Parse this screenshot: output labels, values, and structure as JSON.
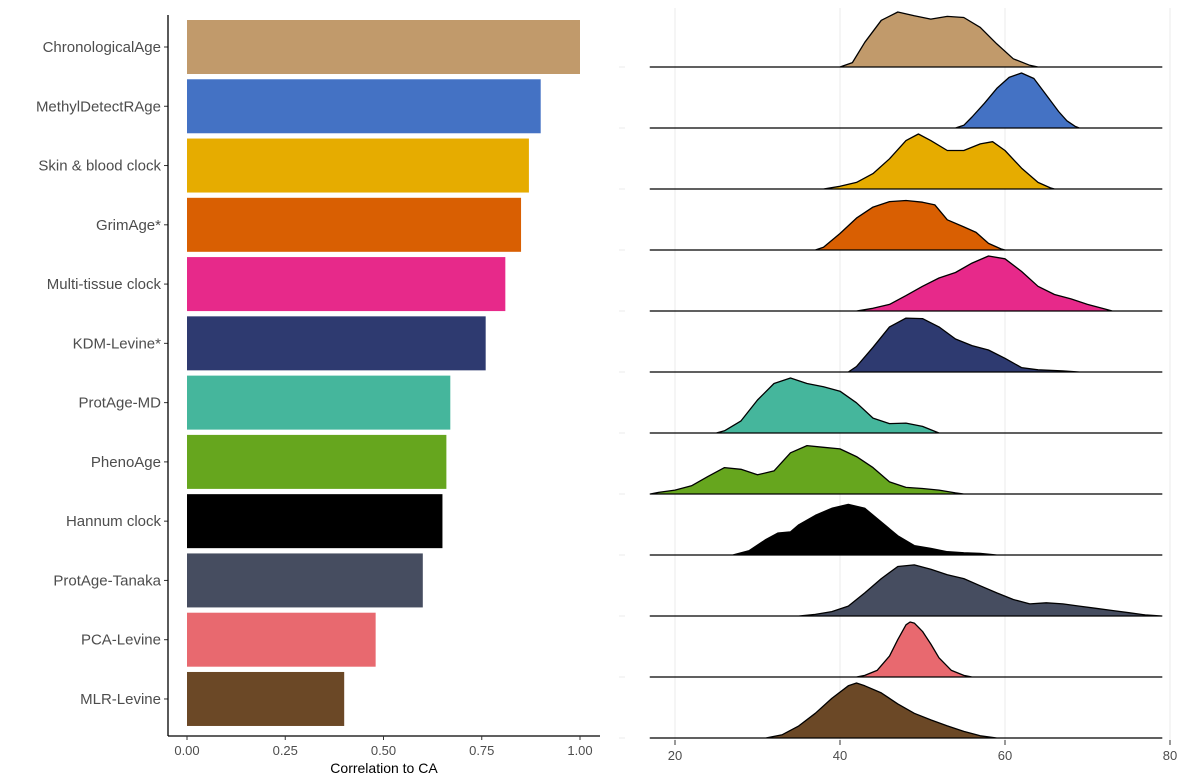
{
  "chart_data": [
    {
      "type": "bar",
      "orientation": "horizontal",
      "categories": [
        "ChronologicalAge",
        "MethylDetectRAge",
        "Skin & blood clock",
        "GrimAge*",
        "Multi-tissue clock",
        "KDM-Levine*",
        "ProtAge-MD",
        "PhenoAge",
        "Hannum clock",
        "ProtAge-Tanaka",
        "PCA-Levine",
        "MLR-Levine"
      ],
      "values": [
        1.0,
        0.9,
        0.87,
        0.85,
        0.81,
        0.76,
        0.67,
        0.66,
        0.65,
        0.6,
        0.48,
        0.4
      ],
      "colors": [
        "#C19A6B",
        "#4472C4",
        "#E6AC00",
        "#D95F02",
        "#E7298A",
        "#2E3A70",
        "#45B69C",
        "#66A61E",
        "#000000",
        "#464D60",
        "#E8696F",
        "#6B4826"
      ],
      "xlabel": "Correlation to CA",
      "xlim": [
        0,
        1.0
      ],
      "xticks": [
        "0.00",
        "0.25",
        "0.50",
        "0.75",
        "1.00"
      ],
      "grid": false
    },
    {
      "type": "area",
      "subtype": "ridgeline",
      "series_order": [
        "ChronologicalAge",
        "MethylDetectRAge",
        "Skin & blood clock",
        "GrimAge*",
        "Multi-tissue clock",
        "KDM-Levine*",
        "ProtAge-MD",
        "PhenoAge",
        "Hannum clock",
        "ProtAge-Tanaka",
        "PCA-Levine",
        "MLR-Levine"
      ],
      "xlim": [
        17,
        79
      ],
      "xticks": [
        "20",
        "40",
        "60",
        "80"
      ],
      "grid": "vertical",
      "series": [
        {
          "values": [
            [
              17,
              0
            ],
            [
              40,
              0
            ],
            [
              41.5,
              0.08
            ],
            [
              43,
              0.45
            ],
            [
              45,
              0.85
            ],
            [
              47,
              1.0
            ],
            [
              49,
              0.93
            ],
            [
              51,
              0.87
            ],
            [
              53,
              0.92
            ],
            [
              55,
              0.9
            ],
            [
              57,
              0.72
            ],
            [
              59,
              0.42
            ],
            [
              61,
              0.15
            ],
            [
              63,
              0.03
            ],
            [
              64,
              0
            ],
            [
              79,
              0
            ]
          ]
        },
        {
          "values": [
            [
              17,
              0
            ],
            [
              54,
              0
            ],
            [
              55,
              0.05
            ],
            [
              56,
              0.2
            ],
            [
              57.5,
              0.45
            ],
            [
              59,
              0.72
            ],
            [
              60.5,
              0.92
            ],
            [
              62,
              1.0
            ],
            [
              63.5,
              0.9
            ],
            [
              65,
              0.6
            ],
            [
              66.5,
              0.3
            ],
            [
              67.5,
              0.13
            ],
            [
              68.5,
              0.03
            ],
            [
              69,
              0
            ],
            [
              79,
              0
            ]
          ]
        },
        {
          "values": [
            [
              17,
              0
            ],
            [
              38,
              0
            ],
            [
              40,
              0.05
            ],
            [
              42,
              0.12
            ],
            [
              44,
              0.28
            ],
            [
              46,
              0.55
            ],
            [
              48,
              0.88
            ],
            [
              49.5,
              1.0
            ],
            [
              51,
              0.88
            ],
            [
              53,
              0.7
            ],
            [
              55,
              0.7
            ],
            [
              57,
              0.82
            ],
            [
              58.5,
              0.86
            ],
            [
              60,
              0.7
            ],
            [
              62,
              0.38
            ],
            [
              64,
              0.12
            ],
            [
              65.5,
              0.02
            ],
            [
              66,
              0
            ],
            [
              79,
              0
            ]
          ]
        },
        {
          "values": [
            [
              17,
              0
            ],
            [
              37,
              0
            ],
            [
              38,
              0.05
            ],
            [
              40,
              0.3
            ],
            [
              42,
              0.58
            ],
            [
              44,
              0.78
            ],
            [
              46,
              0.88
            ],
            [
              48,
              0.9
            ],
            [
              50,
              0.87
            ],
            [
              51.5,
              0.82
            ],
            [
              53,
              0.55
            ],
            [
              55,
              0.42
            ],
            [
              56.5,
              0.32
            ],
            [
              58,
              0.12
            ],
            [
              59.5,
              0.02
            ],
            [
              60,
              0
            ],
            [
              79,
              0
            ]
          ]
        },
        {
          "values": [
            [
              17,
              0
            ],
            [
              42,
              0
            ],
            [
              44,
              0.05
            ],
            [
              46,
              0.12
            ],
            [
              48,
              0.28
            ],
            [
              50,
              0.45
            ],
            [
              52,
              0.6
            ],
            [
              54,
              0.7
            ],
            [
              56,
              0.87
            ],
            [
              58,
              1.0
            ],
            [
              60,
              0.95
            ],
            [
              62,
              0.72
            ],
            [
              64,
              0.45
            ],
            [
              66,
              0.3
            ],
            [
              68,
              0.22
            ],
            [
              70,
              0.12
            ],
            [
              72,
              0.04
            ],
            [
              73,
              0
            ],
            [
              79,
              0
            ]
          ]
        },
        {
          "values": [
            [
              17,
              0
            ],
            [
              41,
              0
            ],
            [
              42,
              0.1
            ],
            [
              44,
              0.45
            ],
            [
              46,
              0.82
            ],
            [
              48,
              0.98
            ],
            [
              50,
              0.97
            ],
            [
              52,
              0.82
            ],
            [
              54,
              0.6
            ],
            [
              56,
              0.48
            ],
            [
              58,
              0.4
            ],
            [
              60,
              0.25
            ],
            [
              62,
              0.08
            ],
            [
              64,
              0.04
            ],
            [
              67,
              0.02
            ],
            [
              69,
              0
            ],
            [
              79,
              0
            ]
          ]
        },
        {
          "values": [
            [
              17,
              0
            ],
            [
              25,
              0
            ],
            [
              26,
              0.04
            ],
            [
              28,
              0.22
            ],
            [
              30,
              0.6
            ],
            [
              32,
              0.9
            ],
            [
              34,
              1.0
            ],
            [
              36,
              0.9
            ],
            [
              38,
              0.84
            ],
            [
              40,
              0.76
            ],
            [
              42,
              0.55
            ],
            [
              44,
              0.27
            ],
            [
              46,
              0.17
            ],
            [
              48,
              0.18
            ],
            [
              50,
              0.12
            ],
            [
              51.5,
              0.03
            ],
            [
              52,
              0
            ],
            [
              79,
              0
            ]
          ]
        },
        {
          "values": [
            [
              17,
              0
            ],
            [
              18,
              0.03
            ],
            [
              20,
              0.07
            ],
            [
              22,
              0.15
            ],
            [
              24,
              0.32
            ],
            [
              26,
              0.48
            ],
            [
              28,
              0.45
            ],
            [
              30,
              0.35
            ],
            [
              32,
              0.42
            ],
            [
              34,
              0.75
            ],
            [
              36,
              0.88
            ],
            [
              38,
              0.85
            ],
            [
              40,
              0.82
            ],
            [
              42,
              0.68
            ],
            [
              44,
              0.48
            ],
            [
              46,
              0.22
            ],
            [
              48,
              0.12
            ],
            [
              50,
              0.1
            ],
            [
              52,
              0.07
            ],
            [
              54,
              0.02
            ],
            [
              55,
              0
            ],
            [
              79,
              0
            ]
          ]
        },
        {
          "values": [
            [
              17,
              0
            ],
            [
              27,
              0
            ],
            [
              29,
              0.08
            ],
            [
              31,
              0.28
            ],
            [
              32.5,
              0.4
            ],
            [
              34,
              0.42
            ],
            [
              35,
              0.55
            ],
            [
              37,
              0.72
            ],
            [
              39,
              0.85
            ],
            [
              41,
              0.92
            ],
            [
              43,
              0.85
            ],
            [
              45,
              0.6
            ],
            [
              47,
              0.35
            ],
            [
              49,
              0.17
            ],
            [
              51,
              0.12
            ],
            [
              53,
              0.06
            ],
            [
              55,
              0.04
            ],
            [
              57,
              0.03
            ],
            [
              59,
              0
            ],
            [
              79,
              0
            ]
          ]
        },
        {
          "values": [
            [
              17,
              0
            ],
            [
              35,
              0
            ],
            [
              37,
              0.03
            ],
            [
              39,
              0.08
            ],
            [
              41,
              0.18
            ],
            [
              43,
              0.42
            ],
            [
              45,
              0.68
            ],
            [
              47,
              0.9
            ],
            [
              49,
              0.93
            ],
            [
              51,
              0.85
            ],
            [
              53,
              0.75
            ],
            [
              55,
              0.68
            ],
            [
              57,
              0.55
            ],
            [
              59,
              0.42
            ],
            [
              61,
              0.3
            ],
            [
              63,
              0.22
            ],
            [
              65,
              0.24
            ],
            [
              67,
              0.22
            ],
            [
              69,
              0.18
            ],
            [
              71,
              0.14
            ],
            [
              73,
              0.1
            ],
            [
              75,
              0.06
            ],
            [
              77,
              0.02
            ],
            [
              79,
              0
            ]
          ]
        },
        {
          "values": [
            [
              17,
              0
            ],
            [
              42,
              0
            ],
            [
              43,
              0.03
            ],
            [
              44.5,
              0.12
            ],
            [
              46,
              0.38
            ],
            [
              47,
              0.68
            ],
            [
              48,
              0.95
            ],
            [
              48.5,
              1.0
            ],
            [
              49,
              0.98
            ],
            [
              50,
              0.83
            ],
            [
              51,
              0.6
            ],
            [
              52,
              0.35
            ],
            [
              53.5,
              0.12
            ],
            [
              55,
              0.03
            ],
            [
              56,
              0
            ],
            [
              79,
              0
            ]
          ]
        },
        {
          "values": [
            [
              17,
              0
            ],
            [
              31,
              0
            ],
            [
              33,
              0.06
            ],
            [
              35,
              0.22
            ],
            [
              37,
              0.45
            ],
            [
              39,
              0.72
            ],
            [
              41,
              0.95
            ],
            [
              42,
              1.0
            ],
            [
              43,
              0.95
            ],
            [
              45,
              0.82
            ],
            [
              47,
              0.62
            ],
            [
              49,
              0.45
            ],
            [
              51,
              0.33
            ],
            [
              53,
              0.22
            ],
            [
              55,
              0.12
            ],
            [
              57,
              0.04
            ],
            [
              59,
              0
            ],
            [
              79,
              0
            ]
          ]
        }
      ]
    }
  ]
}
